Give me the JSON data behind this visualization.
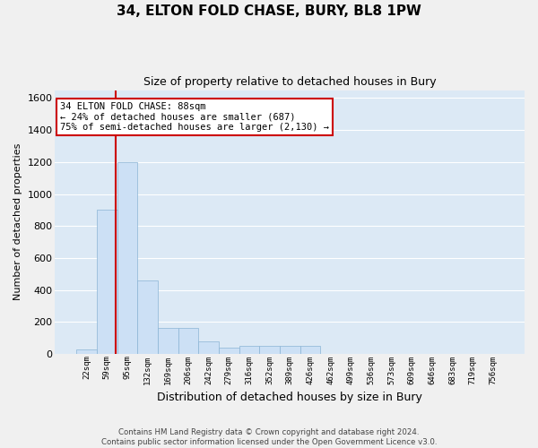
{
  "title": "34, ELTON FOLD CHASE, BURY, BL8 1PW",
  "subtitle": "Size of property relative to detached houses in Bury",
  "xlabel": "Distribution of detached houses by size in Bury",
  "ylabel": "Number of detached properties",
  "footer_line1": "Contains HM Land Registry data © Crown copyright and database right 2024.",
  "footer_line2": "Contains public sector information licensed under the Open Government Licence v3.0.",
  "bins": [
    "22sqm",
    "59sqm",
    "95sqm",
    "132sqm",
    "169sqm",
    "206sqm",
    "242sqm",
    "279sqm",
    "316sqm",
    "352sqm",
    "389sqm",
    "426sqm",
    "462sqm",
    "499sqm",
    "536sqm",
    "573sqm",
    "609sqm",
    "646sqm",
    "683sqm",
    "719sqm",
    "756sqm"
  ],
  "values": [
    30,
    900,
    1200,
    460,
    160,
    160,
    80,
    40,
    50,
    50,
    50,
    50,
    0,
    0,
    0,
    0,
    0,
    0,
    0,
    0,
    0
  ],
  "bar_color": "#cce0f5",
  "bar_edge_color": "#8ab4d4",
  "annotation_line1": "34 ELTON FOLD CHASE: 88sqm",
  "annotation_line2": "← 24% of detached houses are smaller (687)",
  "annotation_line3": "75% of semi-detached houses are larger (2,130) →",
  "annotation_box_color": "#ffffff",
  "annotation_box_edge": "#cc0000",
  "red_line_color": "#cc0000",
  "red_line_x": 1.42,
  "ylim": [
    0,
    1650
  ],
  "yticks": [
    0,
    200,
    400,
    600,
    800,
    1000,
    1200,
    1400,
    1600
  ],
  "background_color": "#dce9f5",
  "grid_color": "#ffffff",
  "title_fontsize": 11,
  "subtitle_fontsize": 9,
  "fig_bg": "#f0f0f0"
}
